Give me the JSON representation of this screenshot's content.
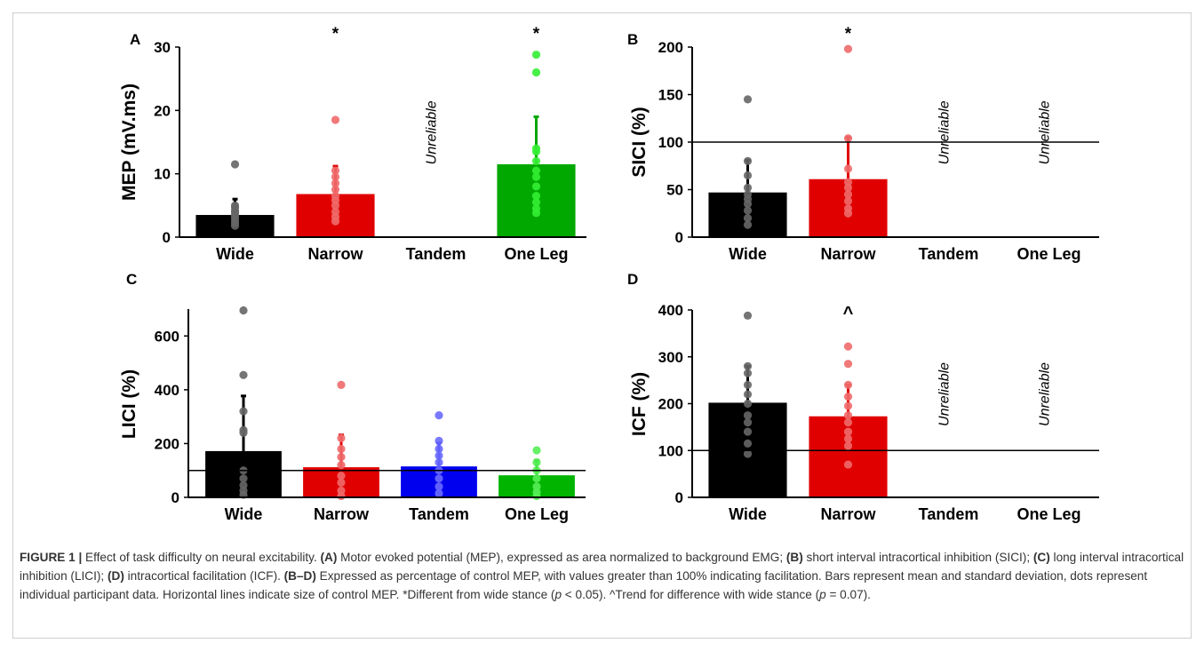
{
  "chart_data": [
    {
      "id": "A",
      "panel_label": "A",
      "type": "bar",
      "ylabel": "MEP (mV.ms)",
      "ylim": [
        0,
        30
      ],
      "yticks": [
        0,
        10,
        20,
        30
      ],
      "categories": [
        "Wide",
        "Narrow",
        "Tandem",
        "One Leg"
      ],
      "bar_colors": [
        "#000000",
        "#e00000",
        null,
        "#00a800"
      ],
      "dot_colors": [
        "#666666",
        "#f06a6a",
        null,
        "#33ee33"
      ],
      "means": [
        3.5,
        6.8,
        null,
        11.5
      ],
      "sd_upper": [
        6.0,
        11.2,
        null,
        19.0
      ],
      "significance": [
        "",
        "*",
        "",
        "*"
      ],
      "unreliable_label": "Unreliable",
      "unreliable": [
        false,
        false,
        true,
        false
      ],
      "reference_line": null,
      "individual": [
        [
          1.8,
          2.3,
          2.8,
          3.2,
          3.5,
          3.9,
          4.2,
          4.7,
          5.0,
          11.5
        ],
        [
          2.5,
          3.2,
          4.0,
          5.0,
          5.8,
          6.5,
          7.5,
          8.5,
          9.5,
          10.5,
          18.5
        ],
        [],
        [
          3.8,
          4.5,
          5.5,
          6.5,
          8.0,
          9.5,
          10.5,
          12.0,
          13.5,
          14.0,
          26.0,
          28.8
        ]
      ]
    },
    {
      "id": "B",
      "panel_label": "B",
      "type": "bar",
      "ylabel": "SICI (%)",
      "ylim": [
        0,
        200
      ],
      "yticks": [
        0,
        50,
        100,
        150,
        200
      ],
      "categories": [
        "Wide",
        "Narrow",
        "Tandem",
        "One Leg"
      ],
      "bar_colors": [
        "#000000",
        "#e00000",
        null,
        null
      ],
      "dot_colors": [
        "#666666",
        "#f06a6a",
        null,
        null
      ],
      "means": [
        47,
        61,
        null,
        null
      ],
      "sd_upper": [
        81,
        105,
        null,
        null
      ],
      "significance": [
        "",
        "*",
        "",
        ""
      ],
      "unreliable_label": "Unreliable",
      "unreliable": [
        false,
        false,
        true,
        true
      ],
      "reference_line": 100,
      "individual": [
        [
          13,
          20,
          28,
          35,
          40,
          45,
          52,
          65,
          80,
          145
        ],
        [
          25,
          30,
          38,
          45,
          52,
          58,
          72,
          104,
          198
        ],
        [],
        []
      ]
    },
    {
      "id": "C",
      "panel_label": "C",
      "type": "bar",
      "ylabel": "LICI (%)",
      "ylim": [
        0,
        700
      ],
      "yticks": [
        0,
        200,
        400,
        600
      ],
      "categories": [
        "Wide",
        "Narrow",
        "Tandem",
        "One Leg"
      ],
      "bar_colors": [
        "#000000",
        "#e00000",
        "#0000ee",
        "#00b400"
      ],
      "dot_colors": [
        "#666666",
        "#f06a6a",
        "#6a6aff",
        "#55ee55"
      ],
      "means": [
        172,
        112,
        115,
        82
      ],
      "sd_upper": [
        377,
        232,
        202,
        138
      ],
      "significance": [
        "",
        "",
        "",
        ""
      ],
      "unreliable_label": "Unreliable",
      "unreliable": [
        false,
        false,
        false,
        false
      ],
      "reference_line": 100,
      "individual": [
        [
          10,
          25,
          45,
          70,
          100,
          240,
          250,
          320,
          455,
          695
        ],
        [
          5,
          25,
          55,
          80,
          120,
          150,
          180,
          220,
          418
        ],
        [
          15,
          40,
          70,
          100,
          130,
          155,
          180,
          210,
          305
        ],
        [
          5,
          20,
          40,
          70,
          100,
          130,
          175
        ]
      ]
    },
    {
      "id": "D",
      "panel_label": "D",
      "type": "bar",
      "ylabel": "ICF (%)",
      "ylim": [
        0,
        400
      ],
      "yticks": [
        0,
        100,
        200,
        300,
        400
      ],
      "categories": [
        "Wide",
        "Narrow",
        "Tandem",
        "One Leg"
      ],
      "bar_colors": [
        "#000000",
        "#e00000",
        null,
        null
      ],
      "dot_colors": [
        "#666666",
        "#f06a6a",
        null,
        null
      ],
      "means": [
        202,
        173,
        null,
        null
      ],
      "sd_upper": [
        280,
        240,
        null,
        null
      ],
      "significance": [
        "",
        "^",
        "",
        ""
      ],
      "unreliable_label": "Unreliable",
      "unreliable": [
        false,
        false,
        true,
        true
      ],
      "reference_line": 100,
      "individual": [
        [
          93,
          115,
          140,
          160,
          175,
          200,
          220,
          240,
          265,
          280,
          388
        ],
        [
          70,
          110,
          125,
          140,
          160,
          175,
          195,
          215,
          240,
          285,
          322
        ],
        [],
        []
      ]
    }
  ],
  "caption": {
    "figure_label": "FIGURE 1 |",
    "intro": " Effect of task difficulty on neural excitability. ",
    "a_label": "(A)",
    "a_text": " Motor evoked potential (MEP), expressed as area normalized to background EMG; ",
    "b_label": "(B)",
    "b_text": " short interval intracortical inhibition (SICI); ",
    "c_label": "(C)",
    "c_text": " long interval intracortical inhibition (LICI); ",
    "d_label": "(D)",
    "d_text": " intracortical facilitation (ICF). ",
    "bd_label": "(B–D)",
    "bd_text": " Expressed as percentage of control MEP, with values greater than 100% indicating facilitation. Bars represent mean and standard deviation, dots represent individual participant data. Horizontal lines indicate size of control MEP. *Different from wide stance (",
    "p1_symbol": "p",
    "p1_value": " < 0.05). ^Trend for difference with wide stance (",
    "p2_symbol": "p",
    "p2_value": " = 0.07)."
  }
}
